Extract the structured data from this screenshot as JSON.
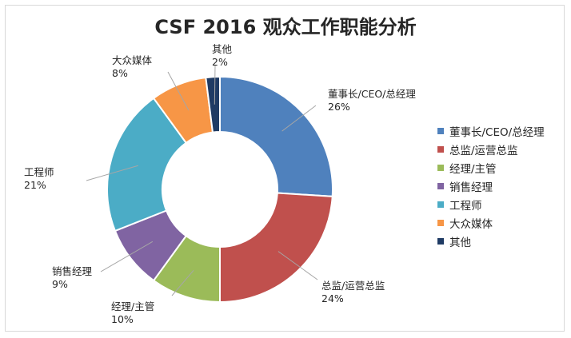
{
  "chart_data": {
    "type": "pie",
    "variant": "donut",
    "title": "CSF 2016 观众工作职能分析",
    "legend_position": "right",
    "series": [
      {
        "name": "董事长/CEO/总经理",
        "value": 26,
        "label": "26%",
        "color": "#4f81bd"
      },
      {
        "name": "总监/运营总监",
        "value": 24,
        "label": "24%",
        "color": "#c0504d"
      },
      {
        "name": "经理/主管",
        "value": 10,
        "label": "10%",
        "color": "#9bbb59"
      },
      {
        "name": "销售经理",
        "value": 9,
        "label": "9%",
        "color": "#8064a2"
      },
      {
        "name": "工程师",
        "value": 21,
        "label": "21%",
        "color": "#4bacc6"
      },
      {
        "name": "大众媒体",
        "value": 8,
        "label": "8%",
        "color": "#f79646"
      },
      {
        "name": "其他",
        "value": 2,
        "label": "2%",
        "color": "#1f3b64"
      }
    ]
  }
}
